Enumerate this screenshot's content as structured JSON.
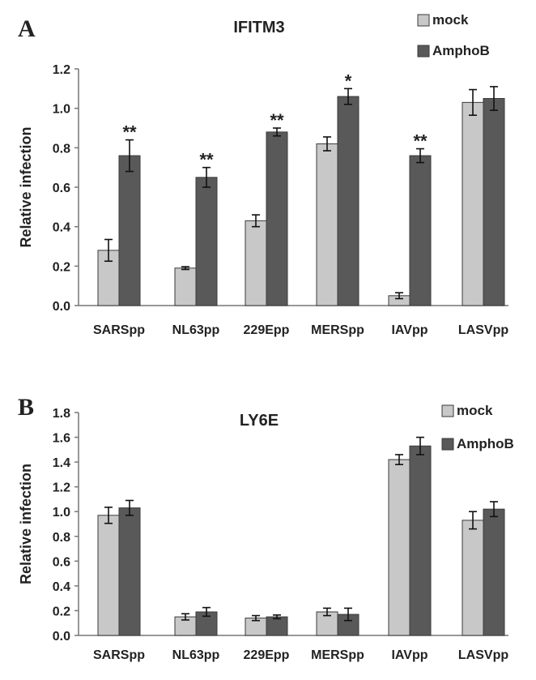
{
  "chart_data": [
    {
      "panel": "A",
      "type": "bar",
      "title": "IFITM3",
      "ylabel": "Relative infection",
      "ylim": [
        0,
        1.2
      ],
      "yticks": [
        "0.0",
        "0.2",
        "0.4",
        "0.6",
        "0.8",
        "1.0",
        "1.2"
      ],
      "categories": [
        "SARSpp",
        "NL63pp",
        "229Epp",
        "MERSpp",
        "IAVpp",
        "LASVpp"
      ],
      "series": [
        {
          "name": "mock",
          "color": "#c8c8c8",
          "values": [
            0.28,
            0.19,
            0.43,
            0.82,
            0.05,
            1.03
          ],
          "errors": [
            0.055,
            0.007,
            0.03,
            0.035,
            0.015,
            0.065
          ]
        },
        {
          "name": "AmphoB",
          "color": "#595959",
          "values": [
            0.76,
            0.65,
            0.88,
            1.06,
            0.76,
            1.05
          ],
          "errors": [
            0.08,
            0.05,
            0.02,
            0.04,
            0.035,
            0.06
          ]
        }
      ],
      "annotations": [
        "**",
        "**",
        "**",
        "*",
        "**",
        ""
      ],
      "legend": "top-right",
      "grid": false
    },
    {
      "panel": "B",
      "type": "bar",
      "title": "LY6E",
      "ylabel": "Relative infection",
      "ylim": [
        0,
        1.8
      ],
      "yticks": [
        "0.0",
        "0.2",
        "0.4",
        "0.6",
        "0.8",
        "1.0",
        "1.2",
        "1.4",
        "1.6",
        "1.8"
      ],
      "categories": [
        "SARSpp",
        "NL63pp",
        "229Epp",
        "MERSpp",
        "IAVpp",
        "LASVpp"
      ],
      "series": [
        {
          "name": "mock",
          "color": "#c8c8c8",
          "values": [
            0.97,
            0.15,
            0.14,
            0.19,
            1.42,
            0.93
          ],
          "errors": [
            0.065,
            0.025,
            0.02,
            0.03,
            0.04,
            0.07
          ]
        },
        {
          "name": "AmphoB",
          "color": "#595959",
          "values": [
            1.03,
            0.19,
            0.15,
            0.17,
            1.53,
            1.02
          ],
          "errors": [
            0.06,
            0.035,
            0.015,
            0.05,
            0.07,
            0.06
          ]
        }
      ],
      "annotations": [
        "",
        "",
        "",
        "",
        "",
        ""
      ],
      "legend": "top-right",
      "grid": false
    }
  ]
}
